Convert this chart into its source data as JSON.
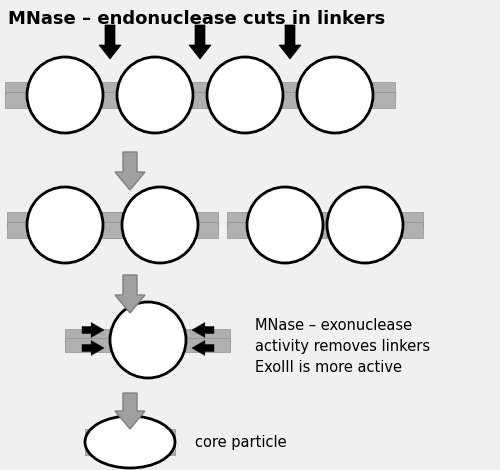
{
  "title": "MNase – endonuclease cuts in linkers",
  "bg_color": "#f0f0f0",
  "fig_bg": "#f0f0f0",
  "nucleosome_color": "#ffffff",
  "nucleosome_edge": "#000000",
  "linker_color": "#b0b0b0",
  "linker_edge": "#909090",
  "arrow_fill": "#a0a0a0",
  "arrow_edge": "#808080",
  "text_color": "#000000",
  "annot_text": "MNase – exonuclease\nactivity removes linkers\nExoIII is more active",
  "core_text": "core particle",
  "annot_fontsize": 10.5,
  "title_fontsize": 13,
  "nuc_lw": 2.0
}
